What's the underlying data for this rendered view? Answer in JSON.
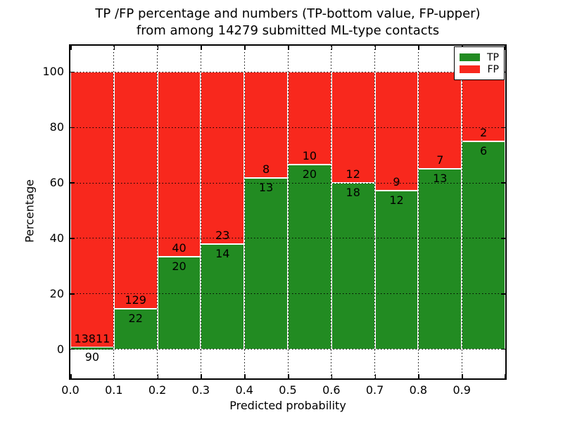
{
  "figure": {
    "title_line1": "TP /FP percentage and numbers (TP-bottom value, FP-upper)",
    "title_line2": "from among 14279 submitted ML-type contacts",
    "background_color": "#ffffff"
  },
  "chart_data": {
    "type": "bar",
    "variant": "stacked-percentage",
    "title": "TP /FP percentage and numbers (TP-bottom value, FP-upper) from among 14279 submitted ML-type contacts",
    "xlabel": "Predicted probability",
    "ylabel": "Percentage",
    "total_contacts": 14279,
    "categories": [
      "0.0-0.1",
      "0.1-0.2",
      "0.2-0.3",
      "0.3-0.4",
      "0.4-0.5",
      "0.5-0.6",
      "0.6-0.7",
      "0.7-0.8",
      "0.8-0.9",
      "0.9-1.0"
    ],
    "x_tick_labels": [
      "0.0",
      "0.1",
      "0.2",
      "0.3",
      "0.4",
      "0.5",
      "0.6",
      "0.7",
      "0.8",
      "0.9"
    ],
    "y_ticks": [
      0,
      20,
      40,
      60,
      80,
      100
    ],
    "xlim": [
      0.0,
      1.0
    ],
    "ylim": [
      -10.5,
      109.5
    ],
    "grid": "dotted black, both axes, drawn above bars",
    "series": [
      {
        "name": "TP",
        "color": "#228b22",
        "counts": [
          90,
          22,
          20,
          14,
          13,
          20,
          18,
          12,
          13,
          6
        ]
      },
      {
        "name": "FP",
        "color": "#f8281d",
        "counts": [
          13811,
          129,
          40,
          23,
          8,
          10,
          12,
          9,
          7,
          2
        ]
      }
    ],
    "tp_percent": [
      0.65,
      14.57,
      33.33,
      37.84,
      61.9,
      66.67,
      60.0,
      57.14,
      65.0,
      75.0
    ],
    "legend": {
      "position": "upper right",
      "entries": [
        {
          "label": "TP",
          "color": "#228b22"
        },
        {
          "label": "FP",
          "color": "#f8281d"
        }
      ]
    }
  }
}
